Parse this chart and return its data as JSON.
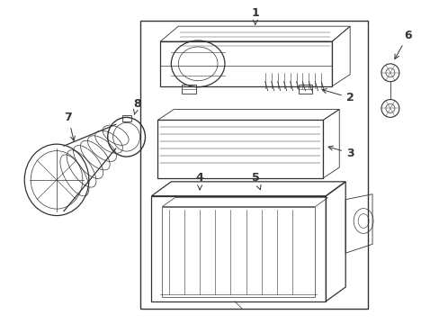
{
  "bg_color": "#ffffff",
  "line_color": "#333333",
  "fig_width": 4.89,
  "fig_height": 3.6,
  "dpi": 100,
  "font_size": 9
}
